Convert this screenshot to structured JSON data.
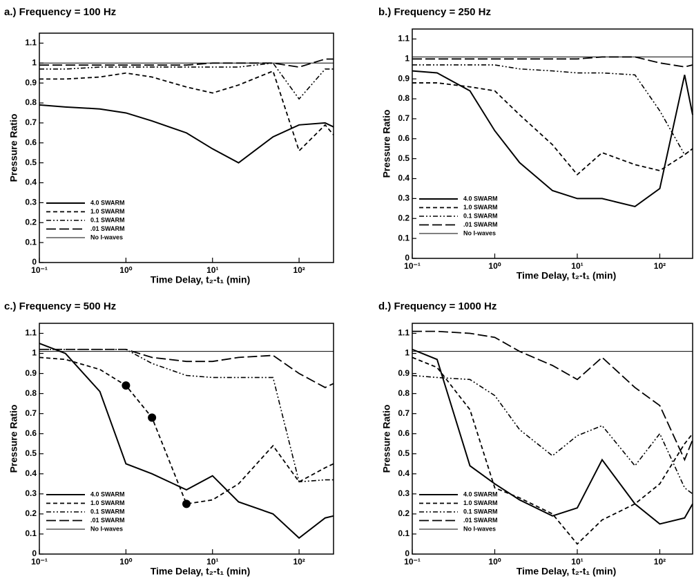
{
  "chart_data": [
    {
      "type": "line",
      "title": "a.)  Frequency = 100 Hz",
      "x_label": "Time Delay, t₂-t₁ (min)",
      "y_label": "Pressure Ratio",
      "x": [
        0.1,
        0.2,
        0.5,
        1,
        2,
        5,
        10,
        20,
        50,
        100,
        200,
        250
      ],
      "xlim": [
        0.1,
        250
      ],
      "x_log": true,
      "xticks": [
        {
          "value": 0.1,
          "label": "10⁻¹"
        },
        {
          "value": 1,
          "label": "10⁰"
        },
        {
          "value": 10,
          "label": "10¹"
        },
        {
          "value": 100,
          "label": "10²"
        }
      ],
      "ylim": [
        0,
        1.15
      ],
      "yticks": [
        0,
        0.1,
        0.2,
        0.3,
        0.4,
        0.5,
        0.6,
        0.7,
        0.8,
        0.9,
        1,
        1.1
      ],
      "legend": "lower left",
      "series": [
        {
          "name": "4.0 SWARM",
          "color": "#000",
          "line_style": "solid",
          "values": [
            0.79,
            0.78,
            0.77,
            0.75,
            0.71,
            0.65,
            0.57,
            0.5,
            0.63,
            0.69,
            0.7,
            0.68
          ]
        },
        {
          "name": "1.0 SWARM",
          "color": "#000",
          "line_style": "dashed",
          "values": [
            0.92,
            0.92,
            0.93,
            0.95,
            0.93,
            0.88,
            0.85,
            0.89,
            0.96,
            0.56,
            0.69,
            0.64
          ]
        },
        {
          "name": "0.1 SWARM",
          "color": "#000",
          "line_style": "dashdot",
          "values": [
            0.97,
            0.97,
            0.98,
            0.98,
            0.98,
            0.98,
            0.98,
            0.98,
            1.0,
            0.82,
            0.97,
            0.97
          ]
        },
        {
          "name": ".01 SWARM",
          "color": "#000",
          "line_style": "longdash",
          "values": [
            0.99,
            0.99,
            0.99,
            0.99,
            0.99,
            0.99,
            1.0,
            1.0,
            1.0,
            0.98,
            1.02,
            1.02
          ]
        },
        {
          "name": "No I-waves",
          "color": "#000",
          "line_style": "thin",
          "values": [
            1,
            1,
            1,
            1,
            1,
            1,
            1,
            1,
            1,
            1,
            1,
            1
          ]
        }
      ]
    },
    {
      "type": "line",
      "title": "b.)  Frequency = 250 Hz",
      "x_label": "Time Delay, t₂-t₁ (min)",
      "y_label": "Pressure Ratio",
      "x": [
        0.1,
        0.2,
        0.5,
        1,
        2,
        5,
        10,
        20,
        50,
        100,
        200,
        250
      ],
      "xlim": [
        0.1,
        250
      ],
      "x_log": true,
      "xticks": [
        {
          "value": 0.1,
          "label": "10⁻¹"
        },
        {
          "value": 1,
          "label": "10⁰"
        },
        {
          "value": 10,
          "label": "10¹"
        },
        {
          "value": 100,
          "label": "10²"
        }
      ],
      "ylim": [
        0,
        1.15
      ],
      "yticks": [
        0,
        0.1,
        0.2,
        0.3,
        0.4,
        0.5,
        0.6,
        0.7,
        0.8,
        0.9,
        1,
        1.1
      ],
      "legend": "lower left",
      "series": [
        {
          "name": "4.0 SWARM",
          "color": "#000",
          "line_style": "solid",
          "values": [
            0.94,
            0.93,
            0.84,
            0.64,
            0.48,
            0.34,
            0.3,
            0.3,
            0.26,
            0.35,
            0.92,
            0.72
          ]
        },
        {
          "name": "1.0 SWARM",
          "color": "#000",
          "line_style": "dashed",
          "values": [
            0.88,
            0.88,
            0.86,
            0.84,
            0.72,
            0.57,
            0.42,
            0.53,
            0.47,
            0.44,
            0.52,
            0.55
          ]
        },
        {
          "name": "0.1 SWARM",
          "color": "#000",
          "line_style": "dashdot",
          "values": [
            0.97,
            0.97,
            0.97,
            0.97,
            0.95,
            0.94,
            0.93,
            0.93,
            0.92,
            0.74,
            0.52,
            0.55
          ]
        },
        {
          "name": ".01 SWARM",
          "color": "#000",
          "line_style": "longdash",
          "values": [
            1.0,
            1.0,
            1.0,
            1.0,
            1.0,
            1.0,
            1.0,
            1.01,
            1.01,
            0.98,
            0.96,
            0.97
          ]
        },
        {
          "name": "No I-waves",
          "color": "#000",
          "line_style": "thin",
          "values": [
            1.01,
            1.01,
            1.01,
            1.01,
            1.01,
            1.01,
            1.01,
            1.01,
            1.01,
            1.01,
            1.01,
            1.01
          ]
        }
      ]
    },
    {
      "type": "line",
      "title": "c.)  Frequency = 500 Hz",
      "x_label": "Time Delay, t₂-t₁ (min)",
      "y_label": "Pressure Ratio",
      "x": [
        0.1,
        0.2,
        0.5,
        1,
        2,
        5,
        10,
        20,
        50,
        100,
        200,
        250
      ],
      "xlim": [
        0.1,
        250
      ],
      "x_log": true,
      "xticks": [
        {
          "value": 0.1,
          "label": "10⁻¹"
        },
        {
          "value": 1,
          "label": "10⁰"
        },
        {
          "value": 10,
          "label": "10¹"
        },
        {
          "value": 100,
          "label": "10²"
        }
      ],
      "ylim": [
        0,
        1.15
      ],
      "yticks": [
        0,
        0.1,
        0.2,
        0.3,
        0.4,
        0.5,
        0.6,
        0.7,
        0.8,
        0.9,
        1,
        1.1
      ],
      "legend": "lower left",
      "series": [
        {
          "name": "4.0 SWARM",
          "color": "#000",
          "line_style": "solid",
          "values": [
            1.05,
            1.0,
            0.81,
            0.45,
            0.4,
            0.32,
            0.39,
            0.26,
            0.2,
            0.08,
            0.18,
            0.19
          ]
        },
        {
          "name": "1.0 SWARM",
          "color": "#000",
          "line_style": "dashed",
          "values": [
            0.98,
            0.97,
            0.92,
            0.84,
            0.68,
            0.25,
            0.27,
            0.35,
            0.54,
            0.36,
            0.43,
            0.45
          ]
        },
        {
          "name": "0.1 SWARM",
          "color": "#000",
          "line_style": "dashdot",
          "values": [
            1.02,
            1.02,
            1.02,
            1.02,
            0.95,
            0.89,
            0.88,
            0.88,
            0.88,
            0.36,
            0.37,
            0.37
          ]
        },
        {
          "name": ".01 SWARM",
          "color": "#000",
          "line_style": "longdash",
          "values": [
            1.02,
            1.02,
            1.02,
            1.02,
            0.98,
            0.96,
            0.96,
            0.98,
            0.99,
            0.9,
            0.83,
            0.85
          ]
        },
        {
          "name": "No I-waves",
          "color": "#000",
          "line_style": "thin",
          "values": [
            1.01,
            1.01,
            1.01,
            1.01,
            1.01,
            1.01,
            1.01,
            1.01,
            1.01,
            1.01,
            1.01,
            1.01
          ]
        }
      ],
      "markers": {
        "x": [
          1,
          2,
          5
        ],
        "y": [
          0.84,
          0.68,
          0.25
        ],
        "color": "#000"
      }
    },
    {
      "type": "line",
      "title": "d.)  Frequency = 1000 Hz",
      "x_label": "Time Delay, t₂-t₁ (min)",
      "y_label": "Pressure Ratio",
      "x": [
        0.1,
        0.2,
        0.5,
        1,
        2,
        5,
        10,
        20,
        50,
        100,
        200,
        250
      ],
      "xlim": [
        0.1,
        250
      ],
      "x_log": true,
      "xticks": [
        {
          "value": 0.1,
          "label": "10⁻¹"
        },
        {
          "value": 1,
          "label": "10⁰"
        },
        {
          "value": 10,
          "label": "10¹"
        },
        {
          "value": 100,
          "label": "10²"
        }
      ],
      "ylim": [
        0,
        1.15
      ],
      "yticks": [
        0,
        0.1,
        0.2,
        0.3,
        0.4,
        0.5,
        0.6,
        0.7,
        0.8,
        0.9,
        1,
        1.1
      ],
      "legend": "lower left",
      "series": [
        {
          "name": "4.0 SWARM",
          "color": "#000",
          "line_style": "solid",
          "values": [
            1.02,
            0.97,
            0.44,
            0.35,
            0.27,
            0.19,
            0.23,
            0.47,
            0.25,
            0.15,
            0.18,
            0.25
          ]
        },
        {
          "name": "1.0 SWARM",
          "color": "#000",
          "line_style": "dashed",
          "values": [
            0.98,
            0.93,
            0.72,
            0.33,
            0.28,
            0.2,
            0.05,
            0.17,
            0.25,
            0.35,
            0.55,
            0.6
          ]
        },
        {
          "name": "0.1 SWARM",
          "color": "#000",
          "line_style": "dashdot",
          "values": [
            0.89,
            0.88,
            0.87,
            0.79,
            0.62,
            0.49,
            0.59,
            0.64,
            0.44,
            0.6,
            0.33,
            0.3
          ]
        },
        {
          "name": ".01 SWARM",
          "color": "#000",
          "line_style": "longdash",
          "values": [
            1.11,
            1.11,
            1.1,
            1.08,
            1.01,
            0.94,
            0.87,
            0.98,
            0.83,
            0.74,
            0.47,
            0.57
          ]
        },
        {
          "name": "No I-waves",
          "color": "#000",
          "line_style": "thin",
          "values": [
            1.01,
            1.01,
            1.01,
            1.01,
            1.01,
            1.01,
            1.01,
            1.01,
            1.01,
            1.01,
            1.01,
            1.01
          ]
        }
      ]
    }
  ]
}
